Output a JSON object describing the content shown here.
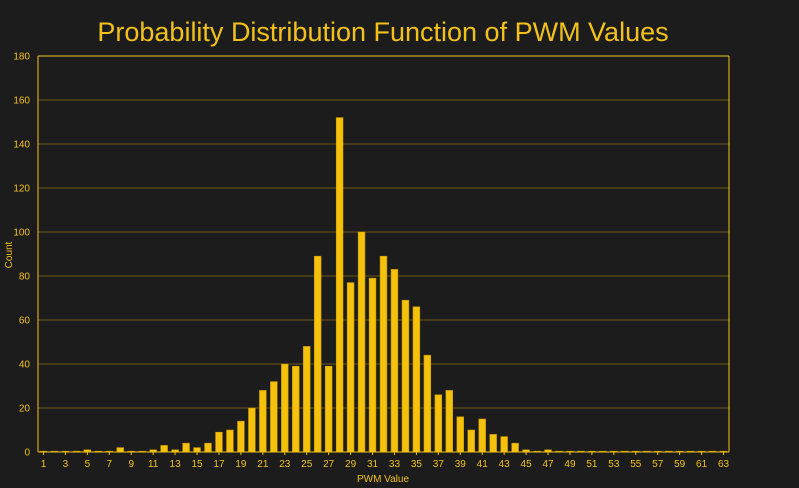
{
  "colors": {
    "background": "#1c1c1c",
    "accent": "#f2c21b",
    "bar": "#f4c20d",
    "bar_stroke": "#c99700",
    "grid": "#6b5714"
  },
  "chart_data": {
    "type": "bar",
    "title": "Probability Distribution Function of PWM Values",
    "xlabel": "PWM Value",
    "ylabel": "Count",
    "ylim": [
      0,
      180
    ],
    "yticks": [
      0,
      20,
      40,
      60,
      80,
      100,
      120,
      140,
      160,
      180
    ],
    "grid": true,
    "legend": "none",
    "categories": [
      "1",
      "2",
      "3",
      "4",
      "5",
      "6",
      "7",
      "8",
      "9",
      "10",
      "11",
      "12",
      "13",
      "14",
      "15",
      "16",
      "17",
      "18",
      "19",
      "20",
      "21",
      "22",
      "23",
      "24",
      "25",
      "26",
      "27",
      "28",
      "29",
      "30",
      "31",
      "32",
      "33",
      "34",
      "35",
      "36",
      "37",
      "38",
      "39",
      "40",
      "41",
      "42",
      "43",
      "44",
      "45",
      "46",
      "47",
      "48",
      "49",
      "50",
      "51",
      "52",
      "53",
      "54",
      "55",
      "56",
      "57",
      "58",
      "59",
      "60",
      "61",
      "62",
      "63"
    ],
    "xtick_labels": [
      "1",
      "3",
      "5",
      "7",
      "9",
      "11",
      "13",
      "15",
      "17",
      "19",
      "21",
      "23",
      "25",
      "27",
      "29",
      "31",
      "33",
      "35",
      "37",
      "39",
      "41",
      "43",
      "45",
      "47",
      "49",
      "51",
      "53",
      "55",
      "57",
      "59",
      "61",
      "63"
    ],
    "values": [
      0,
      0,
      0,
      0,
      1,
      0,
      0,
      2,
      0,
      0,
      1,
      3,
      1,
      4,
      2,
      4,
      9,
      10,
      14,
      20,
      28,
      32,
      40,
      39,
      48,
      89,
      39,
      152,
      77,
      100,
      79,
      89,
      83,
      69,
      66,
      44,
      26,
      28,
      16,
      10,
      15,
      8,
      7,
      4,
      1,
      0,
      1,
      0,
      0,
      0,
      0,
      0,
      0,
      0,
      0,
      0,
      0,
      0,
      0,
      0,
      0,
      0,
      0
    ]
  }
}
